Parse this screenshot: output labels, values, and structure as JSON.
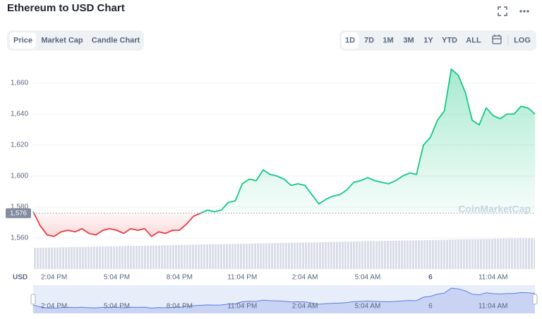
{
  "chart_data": {
    "type": "line",
    "title": "Ethereum to USD Chart",
    "tabs": [
      "Price",
      "Market Cap",
      "Candle Chart"
    ],
    "active_tab": "Price",
    "ranges": [
      "1D",
      "7D",
      "1M",
      "3M",
      "1Y",
      "YTD",
      "ALL"
    ],
    "active_range": "1D",
    "log_button": "LOG",
    "x_axis_label": "USD",
    "watermark": "CoinMarketCap",
    "reference_price": {
      "value": 1576,
      "label": "1,576"
    },
    "up_color": "#16c784",
    "down_color": "#ea3943",
    "navigator_color": "#5a7ddf",
    "grid": true,
    "ylim": [
      1540,
      1677
    ],
    "yticks": [
      {
        "value": 1560,
        "label": "1,560"
      },
      {
        "value": 1580,
        "label": "1,580"
      },
      {
        "value": 1600,
        "label": "1,600"
      },
      {
        "value": 1620,
        "label": "1,620"
      },
      {
        "value": 1640,
        "label": "1,640"
      },
      {
        "value": 1660,
        "label": "1,660"
      }
    ],
    "categories": [
      null,
      null,
      null,
      "2:04 PM",
      null,
      null,
      null,
      null,
      null,
      null,
      null,
      null,
      "5:04 PM",
      null,
      null,
      null,
      null,
      null,
      null,
      null,
      null,
      "8:04 PM",
      null,
      null,
      null,
      null,
      null,
      null,
      null,
      null,
      "11:04 PM",
      null,
      null,
      null,
      null,
      null,
      null,
      null,
      null,
      "2:04 AM",
      null,
      null,
      null,
      null,
      null,
      null,
      null,
      null,
      "5:04 AM",
      null,
      null,
      null,
      null,
      null,
      null,
      null,
      null,
      "6",
      null,
      null,
      null,
      null,
      null,
      null,
      null,
      null,
      "11:04 AM",
      null,
      null,
      null,
      null,
      null,
      null
    ],
    "values": [
      1577,
      1568,
      1562,
      1561,
      1564,
      1565,
      1564,
      1566,
      1563,
      1562,
      1565,
      1566,
      1565,
      1563,
      1566,
      1565,
      1566,
      1561,
      1564,
      1563,
      1565,
      1565,
      1569,
      1574,
      1576,
      1578,
      1577,
      1578,
      1583,
      1584,
      1595,
      1598,
      1597,
      1604,
      1601,
      1600,
      1598,
      1594,
      1595,
      1594,
      1588,
      1582,
      1585,
      1587,
      1588,
      1591,
      1596,
      1597,
      1599,
      1597,
      1596,
      1595,
      1597,
      1600,
      1602,
      1601,
      1620,
      1625,
      1636,
      1642,
      1669,
      1665,
      1654,
      1636,
      1633,
      1644,
      1639,
      1637,
      1640,
      1640,
      1645,
      1644,
      1640
    ]
  }
}
